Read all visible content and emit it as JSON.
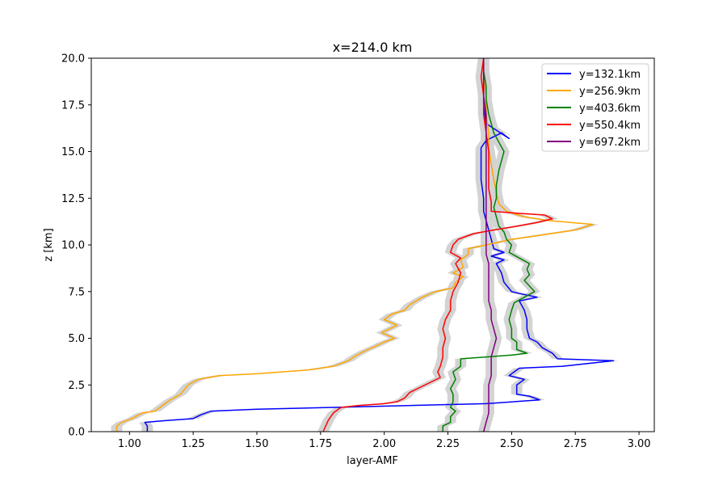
{
  "chart_data": {
    "type": "line",
    "title": "x=214.0 km",
    "xlabel": "layer-AMF",
    "ylabel": "z [km]",
    "xlim": [
      0.85,
      3.06
    ],
    "ylim": [
      0,
      20
    ],
    "xticks": [
      "1.00",
      "1.25",
      "1.50",
      "1.75",
      "2.00",
      "2.25",
      "2.50",
      "2.75",
      "3.00"
    ],
    "yticks": [
      "0.0",
      "2.5",
      "5.0",
      "7.5",
      "10.0",
      "12.5",
      "15.0",
      "17.5",
      "20.0"
    ],
    "legend_position": "top-right",
    "grid": false,
    "band_color": "#d3d3d3",
    "series": [
      {
        "name": "y=132.1km",
        "color": "#0000ff",
        "points": [
          [
            1.07,
            0
          ],
          [
            1.07,
            0.3
          ],
          [
            1.06,
            0.5
          ],
          [
            1.15,
            0.6
          ],
          [
            1.25,
            0.7
          ],
          [
            1.28,
            0.9
          ],
          [
            1.32,
            1.1
          ],
          [
            1.5,
            1.2
          ],
          [
            1.8,
            1.3
          ],
          [
            2.4,
            1.5
          ],
          [
            2.61,
            1.7
          ],
          [
            2.57,
            1.9
          ],
          [
            2.52,
            2.0
          ],
          [
            2.52,
            2.5
          ],
          [
            2.55,
            2.8
          ],
          [
            2.49,
            3.0
          ],
          [
            2.53,
            3.4
          ],
          [
            2.7,
            3.5
          ],
          [
            2.9,
            3.8
          ],
          [
            2.68,
            3.9
          ],
          [
            2.66,
            4.2
          ],
          [
            2.62,
            4.5
          ],
          [
            2.6,
            4.8
          ],
          [
            2.57,
            5.0
          ],
          [
            2.56,
            5.5
          ],
          [
            2.56,
            6.0
          ],
          [
            2.55,
            6.5
          ],
          [
            2.53,
            7.0
          ],
          [
            2.6,
            7.2
          ],
          [
            2.53,
            7.4
          ],
          [
            2.5,
            7.5
          ],
          [
            2.47,
            8.0
          ],
          [
            2.46,
            8.5
          ],
          [
            2.44,
            9.0
          ],
          [
            2.47,
            9.2
          ],
          [
            2.42,
            9.4
          ],
          [
            2.47,
            9.6
          ],
          [
            2.43,
            9.8
          ],
          [
            2.42,
            10.3
          ],
          [
            2.41,
            10.8
          ],
          [
            2.4,
            11.3
          ],
          [
            2.39,
            11.8
          ],
          [
            2.39,
            12.5
          ],
          [
            2.38,
            13.5
          ],
          [
            2.38,
            14.5
          ],
          [
            2.38,
            15.2
          ],
          [
            2.4,
            15.6
          ],
          [
            2.46,
            16.0
          ],
          [
            2.49,
            15.7
          ],
          [
            2.4,
            16.5
          ],
          [
            2.39,
            17.5
          ],
          [
            2.39,
            18.5
          ],
          [
            2.39,
            19.5
          ],
          [
            2.39,
            20.0
          ]
        ]
      },
      {
        "name": "y=256.9km",
        "color": "#ffa500",
        "points": [
          [
            0.95,
            0
          ],
          [
            0.95,
            0.3
          ],
          [
            0.97,
            0.5
          ],
          [
            1.01,
            0.7
          ],
          [
            1.05,
            1.0
          ],
          [
            1.1,
            1.1
          ],
          [
            1.13,
            1.4
          ],
          [
            1.16,
            1.7
          ],
          [
            1.2,
            2.0
          ],
          [
            1.23,
            2.5
          ],
          [
            1.27,
            2.8
          ],
          [
            1.35,
            3.0
          ],
          [
            1.5,
            3.1
          ],
          [
            1.7,
            3.3
          ],
          [
            1.8,
            3.5
          ],
          [
            1.86,
            3.8
          ],
          [
            1.88,
            4.0
          ],
          [
            1.92,
            4.3
          ],
          [
            1.97,
            4.6
          ],
          [
            2.0,
            4.8
          ],
          [
            2.04,
            5.0
          ],
          [
            1.99,
            5.3
          ],
          [
            2.05,
            5.7
          ],
          [
            2.0,
            6.0
          ],
          [
            2.03,
            6.3
          ],
          [
            2.08,
            6.5
          ],
          [
            2.1,
            6.8
          ],
          [
            2.15,
            7.2
          ],
          [
            2.2,
            7.5
          ],
          [
            2.27,
            7.7
          ],
          [
            2.28,
            8.0
          ],
          [
            2.31,
            8.3
          ],
          [
            2.27,
            8.5
          ],
          [
            2.31,
            8.8
          ],
          [
            2.3,
            9.2
          ],
          [
            2.33,
            9.5
          ],
          [
            2.33,
            9.8
          ],
          [
            2.4,
            10.0
          ],
          [
            2.5,
            10.3
          ],
          [
            2.6,
            10.5
          ],
          [
            2.75,
            10.8
          ],
          [
            2.82,
            11.1
          ],
          [
            2.65,
            11.3
          ],
          [
            2.55,
            11.5
          ],
          [
            2.48,
            11.8
          ],
          [
            2.45,
            12.2
          ],
          [
            2.44,
            12.8
          ],
          [
            2.43,
            13.5
          ],
          [
            2.42,
            14.3
          ],
          [
            2.41,
            15.2
          ],
          [
            2.41,
            16.0
          ],
          [
            2.4,
            17.0
          ],
          [
            2.4,
            18.0
          ],
          [
            2.39,
            19.0
          ],
          [
            2.39,
            20.0
          ]
        ]
      },
      {
        "name": "y=403.6km",
        "color": "#008000",
        "points": [
          [
            2.23,
            0
          ],
          [
            2.23,
            0.3
          ],
          [
            2.26,
            0.5
          ],
          [
            2.26,
            0.8
          ],
          [
            2.28,
            1.1
          ],
          [
            2.26,
            1.3
          ],
          [
            2.27,
            1.6
          ],
          [
            2.27,
            2.0
          ],
          [
            2.26,
            2.3
          ],
          [
            2.28,
            2.8
          ],
          [
            2.27,
            3.2
          ],
          [
            2.3,
            3.5
          ],
          [
            2.3,
            3.9
          ],
          [
            2.4,
            4.0
          ],
          [
            2.5,
            4.1
          ],
          [
            2.56,
            4.2
          ],
          [
            2.52,
            4.4
          ],
          [
            2.52,
            4.8
          ],
          [
            2.5,
            5.0
          ],
          [
            2.5,
            5.5
          ],
          [
            2.49,
            6.0
          ],
          [
            2.5,
            6.5
          ],
          [
            2.51,
            6.9
          ],
          [
            2.55,
            7.2
          ],
          [
            2.59,
            7.5
          ],
          [
            2.57,
            7.8
          ],
          [
            2.55,
            8.1
          ],
          [
            2.57,
            8.4
          ],
          [
            2.56,
            8.7
          ],
          [
            2.57,
            9.0
          ],
          [
            2.53,
            9.3
          ],
          [
            2.49,
            9.6
          ],
          [
            2.5,
            10.0
          ],
          [
            2.48,
            10.3
          ],
          [
            2.47,
            10.7
          ],
          [
            2.45,
            11.0
          ],
          [
            2.44,
            11.5
          ],
          [
            2.43,
            12.0
          ],
          [
            2.44,
            12.5
          ],
          [
            2.44,
            13.2
          ],
          [
            2.45,
            14.0
          ],
          [
            2.46,
            14.5
          ],
          [
            2.47,
            15.0
          ],
          [
            2.45,
            15.5
          ],
          [
            2.43,
            16.0
          ],
          [
            2.42,
            16.5
          ],
          [
            2.41,
            17.0
          ],
          [
            2.4,
            17.8
          ],
          [
            2.4,
            18.5
          ],
          [
            2.39,
            19.3
          ],
          [
            2.39,
            20.0
          ]
        ]
      },
      {
        "name": "y=550.4km",
        "color": "#ff0000",
        "points": [
          [
            1.76,
            0
          ],
          [
            1.77,
            0.3
          ],
          [
            1.78,
            0.6
          ],
          [
            1.8,
            1.0
          ],
          [
            1.83,
            1.3
          ],
          [
            1.9,
            1.4
          ],
          [
            2.0,
            1.5
          ],
          [
            2.05,
            1.6
          ],
          [
            2.08,
            1.8
          ],
          [
            2.1,
            2.1
          ],
          [
            2.13,
            2.3
          ],
          [
            2.16,
            2.5
          ],
          [
            2.19,
            2.7
          ],
          [
            2.22,
            2.9
          ],
          [
            2.21,
            3.2
          ],
          [
            2.22,
            3.5
          ],
          [
            2.23,
            4.0
          ],
          [
            2.23,
            4.5
          ],
          [
            2.24,
            5.0
          ],
          [
            2.23,
            5.5
          ],
          [
            2.24,
            6.0
          ],
          [
            2.26,
            6.5
          ],
          [
            2.26,
            7.0
          ],
          [
            2.27,
            7.5
          ],
          [
            2.29,
            8.0
          ],
          [
            2.3,
            8.5
          ],
          [
            2.28,
            9.0
          ],
          [
            2.3,
            9.3
          ],
          [
            2.26,
            9.6
          ],
          [
            2.27,
            10.0
          ],
          [
            2.29,
            10.3
          ],
          [
            2.35,
            10.6
          ],
          [
            2.43,
            10.8
          ],
          [
            2.52,
            11.0
          ],
          [
            2.6,
            11.2
          ],
          [
            2.66,
            11.4
          ],
          [
            2.63,
            11.6
          ],
          [
            2.52,
            11.7
          ],
          [
            2.42,
            11.8
          ],
          [
            2.42,
            12.3
          ],
          [
            2.41,
            13.0
          ],
          [
            2.41,
            14.0
          ],
          [
            2.41,
            15.0
          ],
          [
            2.4,
            16.0
          ],
          [
            2.39,
            17.0
          ],
          [
            2.39,
            18.0
          ],
          [
            2.38,
            19.0
          ],
          [
            2.39,
            20.0
          ]
        ]
      },
      {
        "name": "y=697.2km",
        "color": "#800080",
        "points": [
          [
            2.39,
            0
          ],
          [
            2.4,
            0.5
          ],
          [
            2.41,
            1.0
          ],
          [
            2.41,
            1.5
          ],
          [
            2.41,
            2.0
          ],
          [
            2.41,
            2.5
          ],
          [
            2.42,
            3.0
          ],
          [
            2.42,
            3.5
          ],
          [
            2.42,
            4.0
          ],
          [
            2.43,
            4.5
          ],
          [
            2.44,
            5.0
          ],
          [
            2.43,
            5.5
          ],
          [
            2.42,
            6.0
          ],
          [
            2.42,
            6.5
          ],
          [
            2.41,
            7.0
          ],
          [
            2.41,
            7.5
          ],
          [
            2.41,
            8.0
          ],
          [
            2.41,
            8.5
          ],
          [
            2.41,
            9.0
          ],
          [
            2.4,
            9.5
          ],
          [
            2.4,
            10.0
          ],
          [
            2.4,
            10.5
          ],
          [
            2.4,
            11.0
          ],
          [
            2.4,
            11.5
          ],
          [
            2.4,
            12.0
          ],
          [
            2.4,
            13.0
          ],
          [
            2.4,
            14.0
          ],
          [
            2.4,
            15.0
          ],
          [
            2.4,
            16.0
          ],
          [
            2.4,
            17.0
          ],
          [
            2.39,
            18.0
          ],
          [
            2.39,
            19.0
          ],
          [
            2.39,
            20.0
          ]
        ]
      }
    ]
  }
}
